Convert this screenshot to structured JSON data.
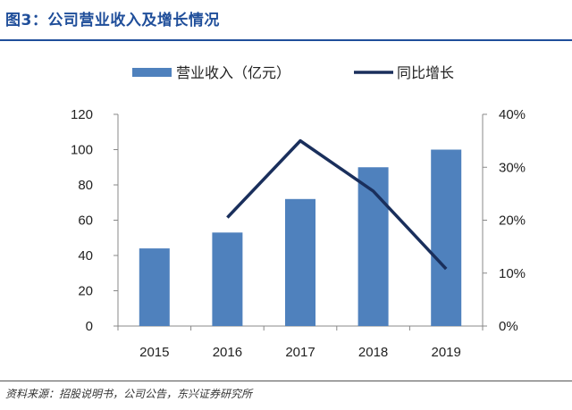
{
  "figure": {
    "title": "图3：公司营业收入及增长情况",
    "source": "资料来源：招股说明书，公司公告，东兴证券研究所"
  },
  "chart_data": {
    "type": "bar",
    "categories": [
      "2015",
      "2016",
      "2017",
      "2018",
      "2019"
    ],
    "series": [
      {
        "name": "营业收入（亿元）",
        "type": "bar",
        "axis": "left",
        "color": "#4f81bd",
        "values": [
          44,
          53,
          72,
          90,
          100
        ]
      },
      {
        "name": "同比增长",
        "type": "line",
        "axis": "right",
        "color": "#1a2f5c",
        "values": [
          null,
          20.5,
          35,
          25.5,
          10.8
        ]
      }
    ],
    "y_left": {
      "ticks": [
        "0",
        "20",
        "40",
        "60",
        "80",
        "100",
        "120"
      ],
      "lim": [
        0,
        120
      ]
    },
    "y_right": {
      "ticks": [
        "0%",
        "10%",
        "20%",
        "30%",
        "40%"
      ],
      "lim": [
        0,
        40
      ]
    },
    "legend": "top",
    "grid": false
  }
}
